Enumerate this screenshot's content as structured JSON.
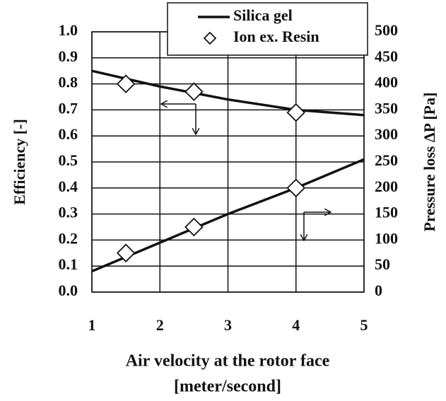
{
  "chart_data": {
    "type": "line",
    "xlabel": [
      "Air velocity at the rotor face",
      "[meter/second]"
    ],
    "ylabel": "Efficiency [-]",
    "y2label": "Pressure loss ΔP [Pa]",
    "xlim": [
      1,
      5
    ],
    "xticks": [
      1,
      2,
      3,
      4,
      5
    ],
    "ylim": [
      0,
      1
    ],
    "yticks": [
      {
        "value": 0,
        "label": "0.0"
      },
      0.1,
      0.2,
      0.3,
      0.4,
      0.5,
      0.6,
      0.7,
      0.8,
      0.9,
      {
        "value": 1,
        "label": "1.0"
      }
    ],
    "y2lim": [
      0,
      500
    ],
    "y2ticks": [
      0,
      50,
      100,
      150,
      200,
      250,
      300,
      350,
      400,
      450,
      500
    ],
    "grid": true,
    "legend": "top-right",
    "series": [
      {
        "name": "Silica gel",
        "color": "#111111",
        "style": "line",
        "x": [
          1,
          2,
          3,
          4,
          5
        ],
        "values": [
          0.85,
          0.79,
          0.74,
          0.7,
          0.68
        ]
      },
      {
        "name": "Silica gel",
        "color": "#111111",
        "style": "line",
        "axis": "y2",
        "x": [
          1,
          2,
          3,
          4,
          5
        ],
        "values": [
          40,
          95,
          150,
          200,
          255
        ]
      },
      {
        "name": "Ion ex. Resin",
        "color": "#111111",
        "style": "diamond",
        "x": [
          1.5,
          2.5,
          4
        ],
        "values": [
          0.8,
          0.77,
          0.69
        ]
      },
      {
        "name": "Ion ex. Resin",
        "color": "#111111",
        "style": "diamond",
        "axis": "y2",
        "x": [
          1.5,
          2.5,
          4
        ],
        "values": [
          75,
          125,
          200
        ]
      }
    ]
  }
}
